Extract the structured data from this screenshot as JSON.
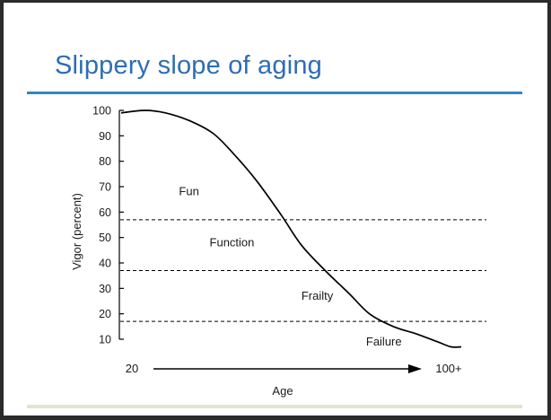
{
  "slide": {
    "title": "Slippery slope of aging"
  },
  "chart_data": {
    "type": "line",
    "ylabel": "Vigor (percent)",
    "xlabel": "Age",
    "x_tick_labels": [
      "20",
      "100+"
    ],
    "y_ticks": [
      10,
      20,
      30,
      40,
      50,
      60,
      70,
      80,
      90,
      100
    ],
    "ylim": [
      10,
      100
    ],
    "xlim": [
      0,
      1
    ],
    "curve": {
      "x": [
        0.0,
        0.07,
        0.13,
        0.2,
        0.27,
        0.33,
        0.4,
        0.47,
        0.53,
        0.6,
        0.67,
        0.73,
        0.8,
        0.87,
        0.93,
        0.97,
        1.0
      ],
      "y": [
        99,
        100,
        99,
        96,
        91,
        83,
        72,
        59,
        47,
        37,
        28,
        20,
        15,
        12,
        9,
        7,
        7
      ]
    },
    "thresholds": [
      57,
      37,
      17
    ],
    "regions": [
      {
        "label": "Fun",
        "y": 68,
        "x": 0.17
      },
      {
        "label": "Function",
        "y": 48,
        "x": 0.26
      },
      {
        "label": "Frailty",
        "y": 27,
        "x": 0.53
      },
      {
        "label": "Failure",
        "y": 9,
        "x": 0.72
      }
    ],
    "grid": false,
    "legend": "none"
  },
  "colors": {
    "title": "#2e6db4",
    "rule": "#2f86c6",
    "line": "#000000"
  }
}
